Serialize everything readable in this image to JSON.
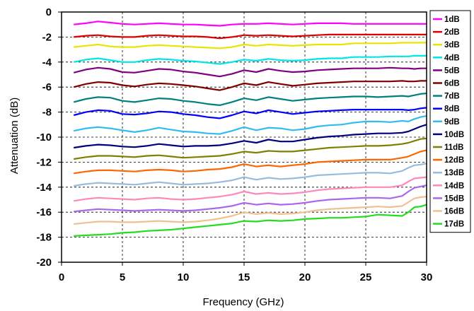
{
  "chart_data": {
    "type": "line",
    "title": "",
    "xlabel": "Frequency (GHz)",
    "ylabel": "Attenuation (dB)",
    "xlim": [
      0,
      30
    ],
    "ylim": [
      -20,
      0
    ],
    "xticks": [
      "0",
      "5",
      "10",
      "15",
      "20",
      "25",
      "30"
    ],
    "yticks": [
      "0",
      "-2",
      "-4",
      "-6",
      "-8",
      "-10",
      "-12",
      "-14",
      "-16",
      "-18",
      "-20"
    ],
    "grid": "dashed",
    "legend_position": "right",
    "x": [
      1,
      2,
      3,
      4,
      5,
      6,
      7,
      8,
      9,
      10,
      11,
      12,
      13,
      14,
      15,
      16,
      17,
      18,
      19,
      20,
      21,
      22,
      23,
      24,
      25,
      26,
      27,
      28,
      28.5,
      29,
      29.5,
      30
    ],
    "series": [
      {
        "name": "1dB",
        "color": "#ff00ff",
        "values": [
          -1.0,
          -0.9,
          -0.75,
          -0.85,
          -0.95,
          -1.0,
          -0.95,
          -0.9,
          -0.95,
          -1.0,
          -1.0,
          -1.05,
          -1.1,
          -1.0,
          -0.95,
          -0.95,
          -0.9,
          -0.95,
          -1.0,
          -0.95,
          -0.9,
          -0.9,
          -0.9,
          -0.95,
          -0.95,
          -0.95,
          -0.95,
          -0.95,
          -0.95,
          -0.95,
          -0.95,
          -0.95
        ]
      },
      {
        "name": "2dB",
        "color": "#dd0000",
        "values": [
          -2.0,
          -1.9,
          -1.85,
          -1.95,
          -2.0,
          -2.0,
          -1.9,
          -1.85,
          -1.9,
          -1.95,
          -1.95,
          -2.0,
          -2.1,
          -2.0,
          -1.85,
          -1.9,
          -1.85,
          -1.9,
          -1.95,
          -1.9,
          -1.85,
          -1.8,
          -1.8,
          -1.8,
          -1.8,
          -1.8,
          -1.8,
          -1.8,
          -1.8,
          -1.8,
          -1.8,
          -1.8
        ]
      },
      {
        "name": "3dB",
        "color": "#e6e600",
        "values": [
          -2.8,
          -2.7,
          -2.6,
          -2.75,
          -2.8,
          -2.8,
          -2.7,
          -2.65,
          -2.7,
          -2.75,
          -2.8,
          -2.85,
          -2.9,
          -2.8,
          -2.6,
          -2.7,
          -2.6,
          -2.65,
          -2.7,
          -2.65,
          -2.6,
          -2.6,
          -2.6,
          -2.5,
          -2.5,
          -2.5,
          -2.5,
          -2.45,
          -2.45,
          -2.45,
          -2.45,
          -2.45
        ]
      },
      {
        "name": "4dB",
        "color": "#00e5e5",
        "values": [
          -4.0,
          -3.8,
          -3.7,
          -3.85,
          -4.0,
          -4.0,
          -3.85,
          -3.75,
          -3.8,
          -3.9,
          -3.95,
          -4.05,
          -4.15,
          -4.0,
          -3.8,
          -3.9,
          -3.75,
          -3.85,
          -3.9,
          -3.85,
          -3.75,
          -3.7,
          -3.7,
          -3.6,
          -3.6,
          -3.6,
          -3.55,
          -3.55,
          -3.55,
          -3.5,
          -3.5,
          -3.5
        ]
      },
      {
        "name": "5dB",
        "color": "#800080",
        "values": [
          -4.85,
          -4.6,
          -4.45,
          -4.55,
          -4.8,
          -4.85,
          -4.7,
          -4.55,
          -4.6,
          -4.75,
          -4.85,
          -5.0,
          -5.15,
          -4.95,
          -4.65,
          -4.8,
          -4.55,
          -4.7,
          -4.8,
          -4.75,
          -4.65,
          -4.6,
          -4.55,
          -4.5,
          -4.5,
          -4.5,
          -4.45,
          -4.5,
          -4.5,
          -4.55,
          -4.5,
          -4.5
        ]
      },
      {
        "name": "6dB",
        "color": "#800000",
        "values": [
          -6.0,
          -5.75,
          -5.6,
          -5.65,
          -5.85,
          -5.95,
          -5.8,
          -5.7,
          -5.75,
          -5.85,
          -5.95,
          -6.1,
          -6.25,
          -6.0,
          -5.7,
          -5.85,
          -5.6,
          -5.75,
          -5.9,
          -5.8,
          -5.7,
          -5.65,
          -5.6,
          -5.55,
          -5.55,
          -5.55,
          -5.55,
          -5.5,
          -5.55,
          -5.55,
          -5.5,
          -5.5
        ]
      },
      {
        "name": "7dB",
        "color": "#008080",
        "values": [
          -7.2,
          -6.95,
          -6.8,
          -6.85,
          -7.1,
          -7.2,
          -7.05,
          -6.9,
          -6.95,
          -7.1,
          -7.2,
          -7.35,
          -7.45,
          -7.2,
          -6.9,
          -7.05,
          -6.8,
          -6.95,
          -7.1,
          -7.0,
          -6.9,
          -6.85,
          -6.8,
          -6.75,
          -6.75,
          -6.8,
          -6.75,
          -6.7,
          -6.75,
          -6.65,
          -6.55,
          -6.5
        ]
      },
      {
        "name": "8dB",
        "color": "#0000ff",
        "values": [
          -8.25,
          -8.0,
          -7.85,
          -7.9,
          -8.15,
          -8.2,
          -8.1,
          -7.95,
          -8.0,
          -8.15,
          -8.25,
          -8.4,
          -8.5,
          -8.25,
          -7.95,
          -8.1,
          -7.85,
          -8.0,
          -8.15,
          -8.05,
          -7.95,
          -7.9,
          -7.85,
          -7.8,
          -7.8,
          -7.8,
          -7.8,
          -7.8,
          -7.85,
          -7.8,
          -7.7,
          -7.65
        ]
      },
      {
        "name": "9dB",
        "color": "#33bbee",
        "values": [
          -9.5,
          -9.3,
          -9.2,
          -9.3,
          -9.45,
          -9.6,
          -9.45,
          -9.25,
          -9.4,
          -9.55,
          -9.6,
          -9.7,
          -9.75,
          -9.5,
          -9.2,
          -9.45,
          -9.25,
          -9.3,
          -9.45,
          -9.35,
          -9.15,
          -9.05,
          -9.0,
          -8.85,
          -8.75,
          -8.75,
          -8.8,
          -8.7,
          -8.75,
          -8.55,
          -8.4,
          -8.3
        ]
      },
      {
        "name": "10dB",
        "color": "#000080",
        "values": [
          -10.85,
          -10.7,
          -10.6,
          -10.65,
          -10.75,
          -10.8,
          -10.7,
          -10.55,
          -10.65,
          -10.75,
          -10.7,
          -10.7,
          -10.65,
          -10.5,
          -10.3,
          -10.45,
          -10.2,
          -10.35,
          -10.35,
          -10.2,
          -10.05,
          -9.95,
          -9.9,
          -9.8,
          -9.75,
          -9.7,
          -9.7,
          -9.65,
          -9.55,
          -9.35,
          -9.15,
          -9.0
        ]
      },
      {
        "name": "11dB",
        "color": "#808000",
        "values": [
          -11.75,
          -11.6,
          -11.5,
          -11.5,
          -11.55,
          -11.6,
          -11.5,
          -11.45,
          -11.55,
          -11.65,
          -11.6,
          -11.55,
          -11.5,
          -11.35,
          -11.15,
          -11.25,
          -11.1,
          -11.15,
          -11.15,
          -11.05,
          -10.95,
          -10.85,
          -10.8,
          -10.75,
          -10.7,
          -10.7,
          -10.65,
          -10.55,
          -10.45,
          -10.3,
          -10.15,
          -10.1
        ]
      },
      {
        "name": "12dB",
        "color": "#ff6600",
        "values": [
          -12.9,
          -12.75,
          -12.65,
          -12.65,
          -12.7,
          -12.75,
          -12.65,
          -12.6,
          -12.65,
          -12.75,
          -12.7,
          -12.6,
          -12.55,
          -12.4,
          -12.15,
          -12.35,
          -12.25,
          -12.35,
          -12.25,
          -12.15,
          -12.0,
          -11.95,
          -11.9,
          -11.85,
          -11.8,
          -11.8,
          -11.8,
          -11.65,
          -11.55,
          -11.35,
          -11.15,
          -11.05
        ]
      },
      {
        "name": "13dB",
        "color": "#99bbdd",
        "values": [
          -13.9,
          -13.75,
          -13.65,
          -13.7,
          -13.75,
          -13.8,
          -13.7,
          -13.6,
          -13.7,
          -13.8,
          -13.75,
          -13.7,
          -13.6,
          -13.45,
          -13.2,
          -13.4,
          -13.25,
          -13.35,
          -13.3,
          -13.2,
          -13.05,
          -13.0,
          -12.95,
          -12.9,
          -12.85,
          -12.85,
          -12.9,
          -12.7,
          -12.45,
          -12.25,
          -12.2,
          -12.1
        ]
      },
      {
        "name": "14dB",
        "color": "#ff88bb",
        "values": [
          -15.1,
          -14.95,
          -14.85,
          -14.9,
          -14.95,
          -15.0,
          -14.9,
          -14.85,
          -14.95,
          -15.0,
          -14.95,
          -14.85,
          -14.75,
          -14.6,
          -14.35,
          -14.55,
          -14.45,
          -14.55,
          -14.5,
          -14.4,
          -14.25,
          -14.15,
          -14.1,
          -14.05,
          -14.0,
          -14.0,
          -14.0,
          -13.85,
          -13.55,
          -13.3,
          -13.25,
          -13.2
        ]
      },
      {
        "name": "15dB",
        "color": "#aa66ee",
        "values": [
          -15.95,
          -15.85,
          -15.75,
          -15.8,
          -15.85,
          -15.9,
          -15.85,
          -15.8,
          -15.85,
          -15.9,
          -15.85,
          -15.75,
          -15.65,
          -15.5,
          -15.25,
          -15.4,
          -15.3,
          -15.4,
          -15.35,
          -15.25,
          -15.1,
          -15.0,
          -14.95,
          -14.9,
          -14.85,
          -14.85,
          -14.9,
          -14.7,
          -14.35,
          -14.05,
          -13.95,
          -13.85
        ]
      },
      {
        "name": "16dB",
        "color": "#f0c090",
        "values": [
          -16.95,
          -16.85,
          -16.75,
          -16.75,
          -16.8,
          -16.8,
          -16.75,
          -16.7,
          -16.75,
          -16.8,
          -16.75,
          -16.65,
          -16.5,
          -16.3,
          -16.0,
          -16.15,
          -16.05,
          -16.15,
          -16.1,
          -16.0,
          -15.85,
          -15.75,
          -15.7,
          -15.65,
          -15.6,
          -15.55,
          -15.6,
          -15.5,
          -15.2,
          -14.9,
          -14.8,
          -14.75
        ]
      },
      {
        "name": "17dB",
        "color": "#22dd22",
        "values": [
          -17.9,
          -17.85,
          -17.8,
          -17.75,
          -17.65,
          -17.6,
          -17.5,
          -17.45,
          -17.4,
          -17.3,
          -17.2,
          -17.1,
          -17.0,
          -16.9,
          -16.7,
          -16.75,
          -16.65,
          -16.7,
          -16.65,
          -16.55,
          -16.5,
          -16.45,
          -16.45,
          -16.4,
          -16.35,
          -16.2,
          -16.25,
          -16.3,
          -16.0,
          -15.6,
          -15.55,
          -15.4
        ]
      }
    ]
  }
}
